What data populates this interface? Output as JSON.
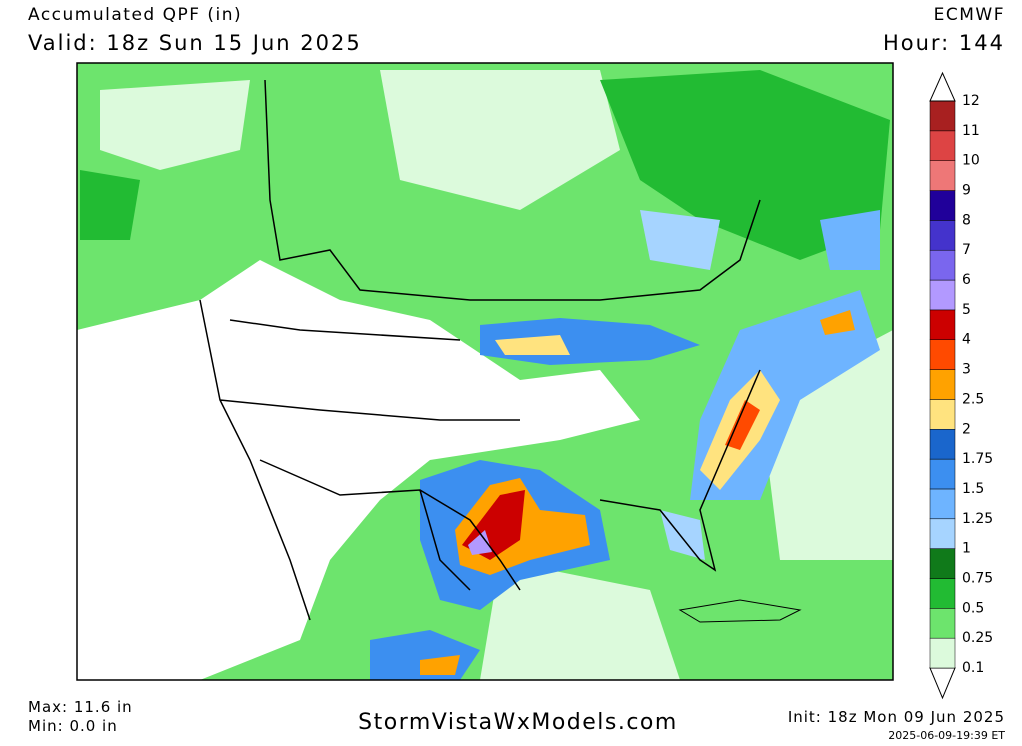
{
  "header": {
    "title": "Accumulated QPF (in)",
    "valid": "Valid: 18z Sun 15 Jun 2025",
    "model": "ECMWF",
    "hour": "Hour: 144"
  },
  "colorbar": {
    "levels": [
      {
        "value": 0.1,
        "color": "#dcfadc"
      },
      {
        "value": 0.25,
        "color": "#6de46d"
      },
      {
        "value": 0.5,
        "color": "#22bb33"
      },
      {
        "value": 0.75,
        "color": "#107a1a"
      },
      {
        "value": 1,
        "color": "#a6d4ff"
      },
      {
        "value": 1.25,
        "color": "#6eb4ff"
      },
      {
        "value": 1.5,
        "color": "#3c8ff0"
      },
      {
        "value": 1.75,
        "color": "#1a66cc"
      },
      {
        "value": 2,
        "color": "#ffe37f"
      },
      {
        "value": 2.5,
        "color": "#ffa200"
      },
      {
        "value": 3,
        "color": "#ff4a00"
      },
      {
        "value": 4,
        "color": "#cc0000"
      },
      {
        "value": 5,
        "color": "#b299ff"
      },
      {
        "value": 6,
        "color": "#7a66ee"
      },
      {
        "value": 7,
        "color": "#4433cc"
      },
      {
        "value": 8,
        "color": "#20009a"
      },
      {
        "value": 9,
        "color": "#ee7777"
      },
      {
        "value": 10,
        "color": "#dd4444"
      },
      {
        "value": 11,
        "color": "#a82020"
      },
      {
        "value": 12,
        "color": "#ffffff"
      }
    ]
  },
  "footer": {
    "max": "Max: 11.6 in",
    "min": "Min: 0.0 in",
    "site": "StormVistaWxModels.com",
    "init": "Init: 18z Mon 09 Jun 2025",
    "stamp": "2025-06-09-19:39 ET"
  }
}
